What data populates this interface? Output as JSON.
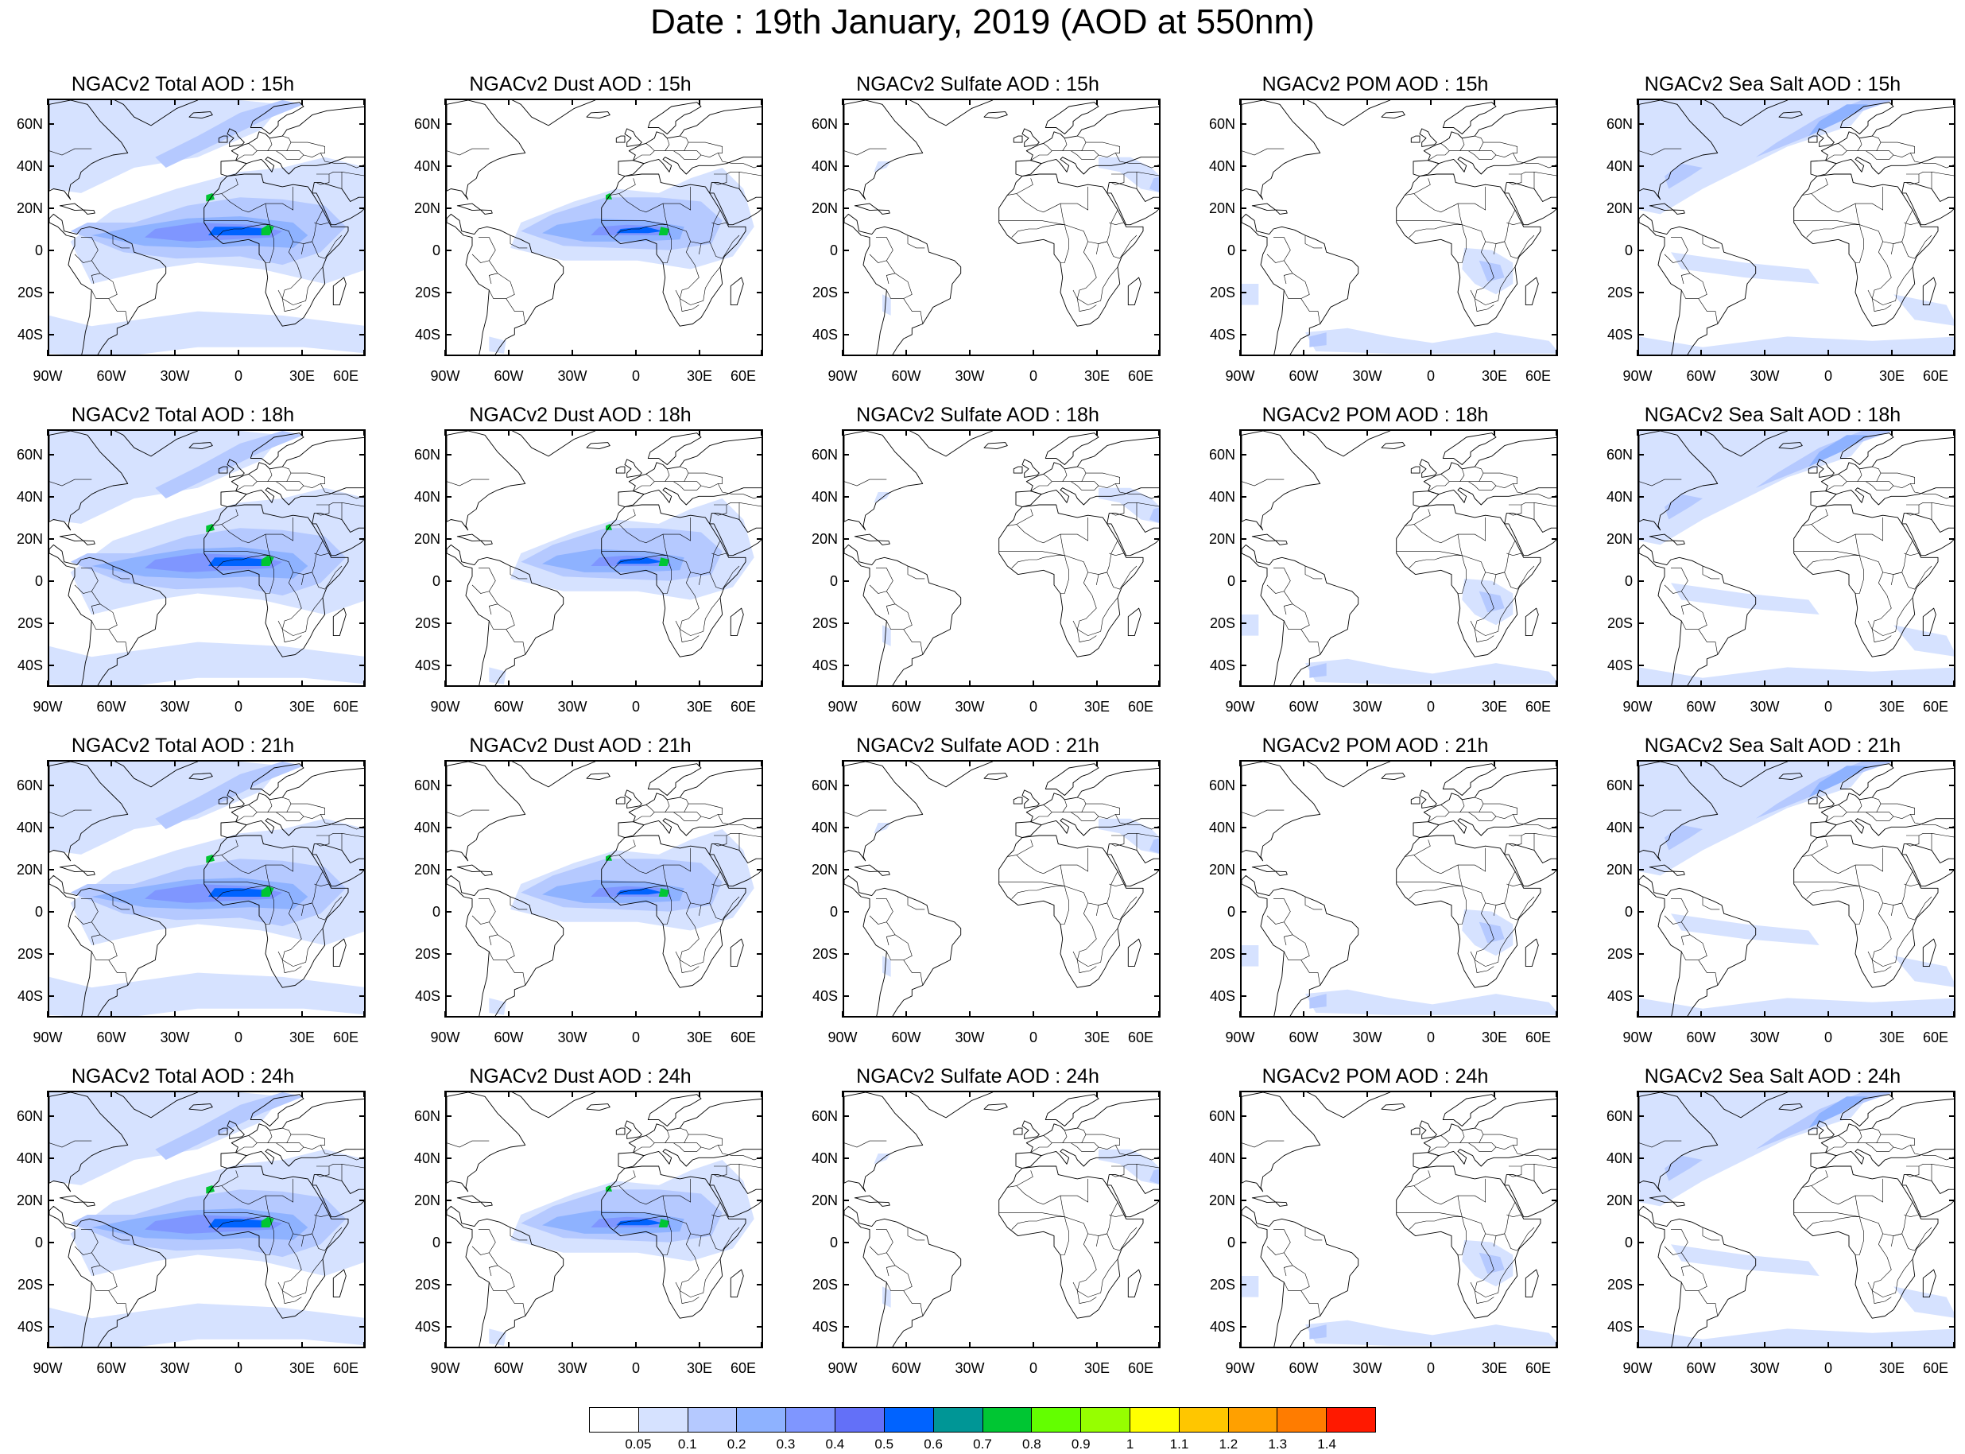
{
  "title": "Date : 19th January, 2019 (AOD at 550nm)",
  "lat_ticks": [
    "60N",
    "40N",
    "20N",
    "0",
    "20S",
    "40S"
  ],
  "lon_ticks": [
    "90W",
    "60W",
    "30W",
    "0",
    "30E",
    "60E"
  ],
  "panels": [
    [
      "NGACv2 Total AOD : 15h",
      "NGACv2 Dust AOD : 15h",
      "NGACv2 Sulfate AOD : 15h",
      "NGACv2 POM AOD : 15h",
      "NGACv2 Sea Salt AOD : 15h"
    ],
    [
      "NGACv2 Total AOD : 18h",
      "NGACv2 Dust AOD : 18h",
      "NGACv2 Sulfate AOD : 18h",
      "NGACv2 POM AOD : 18h",
      "NGACv2 Sea Salt AOD : 18h"
    ],
    [
      "NGACv2 Total AOD : 21h",
      "NGACv2 Dust AOD : 21h",
      "NGACv2 Sulfate AOD : 21h",
      "NGACv2 POM AOD : 21h",
      "NGACv2 Sea Salt AOD : 21h"
    ],
    [
      "NGACv2 Total AOD : 24h",
      "NGACv2 Dust AOD : 24h",
      "NGACv2 Sulfate AOD : 24h",
      "NGACv2 POM AOD : 24h",
      "NGACv2 Sea Salt  AOD : 24h"
    ]
  ],
  "colorbar": {
    "labels": [
      "0.05",
      "0.1",
      "0.2",
      "0.3",
      "0.4",
      "0.5",
      "0.6",
      "0.7",
      "0.8",
      "0.9",
      "1",
      "1.1",
      "1.2",
      "1.3",
      "1.4"
    ],
    "colors": [
      "#ffffff",
      "#d6e2ff",
      "#b5c9ff",
      "#8eb2ff",
      "#7f96ff",
      "#6370f8",
      "#0063ff",
      "#009696",
      "#00c633",
      "#63ff00",
      "#96ff00",
      "#ffff00",
      "#ffc600",
      "#ffa000",
      "#ff7c00",
      "#ff1900"
    ]
  },
  "colors": {
    "coastline": "#000000",
    "border": "#000000"
  }
}
